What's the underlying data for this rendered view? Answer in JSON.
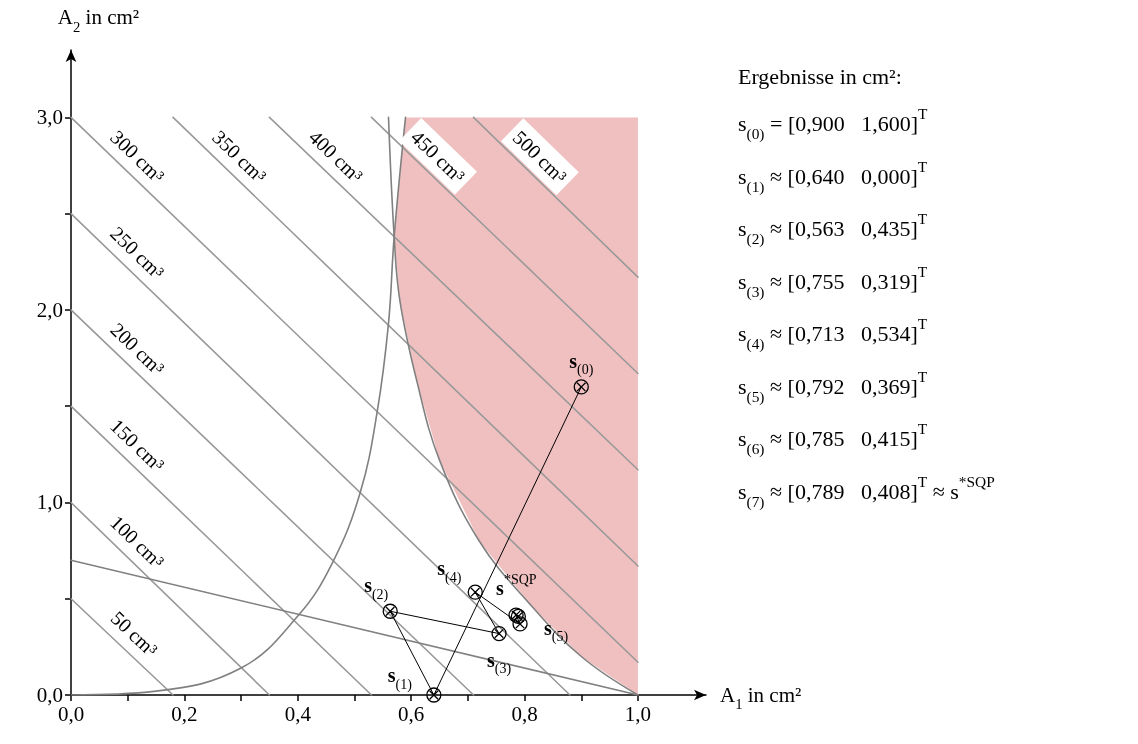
{
  "chart_data": {
    "type": "line",
    "xlabel": "A$_{1}$ in cm²",
    "ylabel": "A$_{2}$ in cm²",
    "xlim": [
      0,
      1.12
    ],
    "ylim": [
      0,
      3.35
    ],
    "xticks": [
      {
        "value": 0,
        "label": "0,0"
      },
      {
        "value": 0.1,
        "label": null
      },
      {
        "value": 0.2,
        "label": "0,2"
      },
      {
        "value": 0.3,
        "label": null
      },
      {
        "value": 0.4,
        "label": "0,4"
      },
      {
        "value": 0.5,
        "label": null
      },
      {
        "value": 0.6,
        "label": "0,6"
      },
      {
        "value": 0.7,
        "label": null
      },
      {
        "value": 0.8,
        "label": "0,8"
      },
      {
        "value": 0.9,
        "label": null
      },
      {
        "value": 1,
        "label": "1,0"
      }
    ],
    "yticks": [
      {
        "value": 0,
        "label": "0,0"
      },
      {
        "value": 0.5,
        "label": null
      },
      {
        "value": 1,
        "label": "1,0"
      },
      {
        "value": 1.5,
        "label": null
      },
      {
        "value": 2,
        "label": "2,0"
      },
      {
        "value": 2.5,
        "label": null
      },
      {
        "value": 3,
        "label": "3,0"
      }
    ],
    "grid": false,
    "legend": false,
    "marker": "none",
    "series": [
      {
        "type": "area",
        "color": "#f0c0c0",
        "x": [
          1,
          0.9,
          0.81,
          0.72,
          0.65,
          0.61,
          0.58,
          0.57,
          0.59,
          1
        ],
        "values": [
          0,
          0.2,
          0.47,
          0.8,
          1.22,
          1.63,
          2.05,
          2.38,
          3,
          3
        ]
      },
      {
        "type": "line",
        "name": "50 cm³",
        "color": "#999999",
        "x": [
          0,
          0.18
        ],
        "values": [
          0.5,
          0
        ]
      },
      {
        "type": "line",
        "name": "100 cm³",
        "color": "#999999",
        "x": [
          0,
          0.35
        ],
        "values": [
          1,
          0
        ]
      },
      {
        "type": "line",
        "name": "150 cm³",
        "color": "#999999",
        "x": [
          0,
          0.53
        ],
        "values": [
          1.5,
          0
        ]
      },
      {
        "type": "line",
        "name": "200 cm³",
        "color": "#999999",
        "x": [
          0,
          0.71
        ],
        "values": [
          2,
          0
        ]
      },
      {
        "type": "line",
        "name": "250 cm³",
        "color": "#999999",
        "x": [
          0,
          0.88
        ],
        "values": [
          2.5,
          0
        ]
      },
      {
        "type": "line",
        "name": "300 cm³",
        "color": "#999999",
        "x": [
          0,
          1
        ],
        "values": [
          3,
          0.17
        ]
      },
      {
        "type": "line",
        "name": "350 cm³",
        "color": "#999999",
        "x": [
          0.18,
          1
        ],
        "values": [
          3,
          0.67
        ]
      },
      {
        "type": "line",
        "name": "400 cm³",
        "color": "#999999",
        "x": [
          0.35,
          1
        ],
        "values": [
          3,
          1.17
        ]
      },
      {
        "type": "line",
        "name": "450 cm³",
        "color": "#999999",
        "x": [
          0.53,
          1
        ],
        "values": [
          3,
          1.67
        ]
      },
      {
        "type": "line",
        "name": "500 cm³",
        "color": "#999999",
        "x": [
          0.71,
          1
        ],
        "values": [
          3,
          2.17
        ]
      },
      {
        "type": "line",
        "color": "#808080",
        "x": [
          0,
          0.15,
          0.3,
          0.4,
          0.46,
          0.51,
          0.54,
          0.56,
          0.57,
          0.59
        ],
        "values": [
          0,
          0.02,
          0.14,
          0.41,
          0.68,
          1.05,
          1.47,
          1.93,
          2.38,
          3
        ]
      },
      {
        "type": "line",
        "color": "#808080",
        "x": [
          1,
          0.9,
          0.81,
          0.72,
          0.65,
          0.61,
          0.58,
          0.57,
          0.56
        ],
        "values": [
          0,
          0.2,
          0.47,
          0.8,
          1.22,
          1.63,
          2.05,
          2.38,
          3
        ]
      },
      {
        "type": "line",
        "color": "#808080",
        "x": [
          0,
          1
        ],
        "values": [
          0.7,
          0
        ]
      },
      {
        "color": "#000000",
        "marker": "cross",
        "x": [
          0.9,
          0.64,
          0.563,
          0.755,
          0.713,
          0.792,
          0.785,
          0.789
        ],
        "values": [
          1.6,
          0,
          0.435,
          0.319,
          0.534,
          0.369,
          0.415,
          0.408
        ]
      }
    ],
    "annotations": [
      {
        "text": "s$_{(0)}$",
        "x": 0.9,
        "y": 1.6
      },
      {
        "text": "s$_{(1)}$",
        "x": 0.64,
        "y": 0
      },
      {
        "text": "s$_{(2)}$",
        "x": 0.563,
        "y": 0.435
      },
      {
        "text": "s$_{(3)}$",
        "x": 0.755,
        "y": 0.319
      },
      {
        "text": "s$_{(4)}$",
        "x": 0.713,
        "y": 0.534
      },
      {
        "text": "s$_{(5)}$",
        "x": 0.792,
        "y": 0.369
      },
      {
        "text": "s$^{*SQP}$",
        "x": 0.789,
        "y": 0.408
      },
      "Ergebnisse in cm²:",
      "s$_{(0)}$ = [0,900   1,600]$^{T}$",
      "s$_{(1)}$ ≈ [0,640   0,000]$^{T}$",
      "s$_{(2)}$ ≈ [0,563   0,435]$^{T}$",
      "s$_{(3)}$ ≈ [0,755   0,319]$^{T}$",
      "s$_{(4)}$ ≈ [0,713   0,534]$^{T}$",
      "s$_{(5)}$ ≈ [0,792   0,369]$^{T}$",
      "s$_{(6)}$ ≈ [0,785   0,415]$^{T}$",
      "s$_{(7)}$ ≈ [0,789   0,408]$^{T}$ ≈ s$^{*SQP}$"
    ]
  }
}
